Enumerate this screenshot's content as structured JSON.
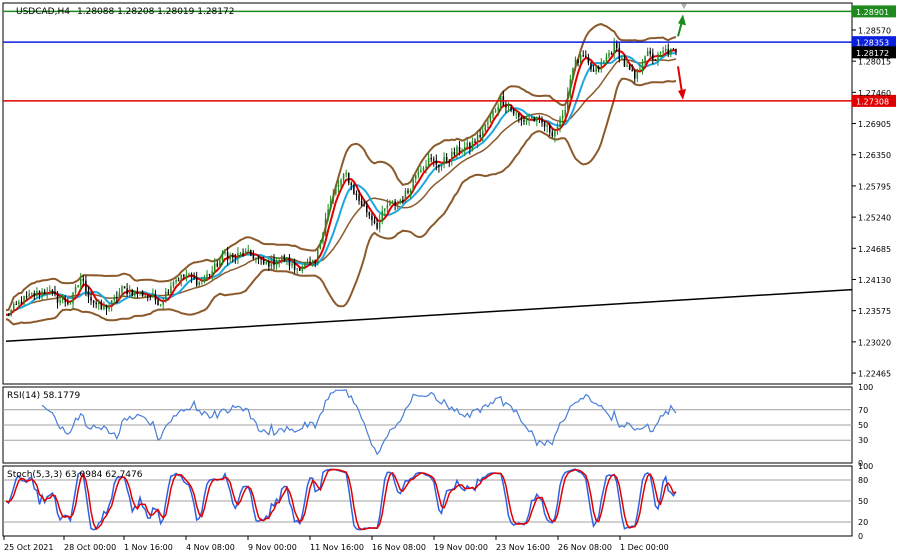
{
  "header": {
    "symbol_tf": "USDCAD,H4",
    "ohlc": "1.28088 1.28208 1.28019 1.28172"
  },
  "main_axis": {
    "ticks": [
      "1.28570",
      "1.28015",
      "1.27460",
      "1.26905",
      "1.26350",
      "1.25795",
      "1.25240",
      "1.24685",
      "1.24130",
      "1.23575",
      "1.23020",
      "1.22465"
    ],
    "tick_values": [
      1.2857,
      1.28015,
      1.2746,
      1.26905,
      1.2635,
      1.25795,
      1.2524,
      1.24685,
      1.2413,
      1.23575,
      1.2302,
      1.22465
    ]
  },
  "levels": [
    {
      "id": "level-green",
      "value": 1.28901,
      "label": "1.28901",
      "color": "#1e8a1e"
    },
    {
      "id": "level-blue",
      "value": 1.28353,
      "label": "1.28353",
      "color": "#0a1ee0"
    },
    {
      "id": "level-current",
      "value": 1.28172,
      "label": "1.28172",
      "color": "#000000"
    },
    {
      "id": "level-red",
      "value": 1.27308,
      "label": "1.27308",
      "color": "#e00000"
    }
  ],
  "rsi_panel": {
    "label": "RSI(14) 58.1779",
    "ticks": [
      "100",
      "70",
      "50",
      "30",
      "0"
    ],
    "tick_values": [
      100,
      70,
      50,
      30,
      0
    ],
    "current": 58.1779
  },
  "stoch_panel": {
    "label": "Stoch(5,3,3) 63.0984 62.7476",
    "ticks": [
      "100",
      "80",
      "50",
      "20",
      "0"
    ],
    "tick_values": [
      100,
      80,
      50,
      20,
      0
    ],
    "main": 63.0984,
    "signal": 62.7476
  },
  "time_axis": [
    "25 Oct 2021",
    "28 Oct 00:00",
    "1 Nov 16:00",
    "4 Nov 08:00",
    "9 Nov 00:00",
    "11 Nov 16:00",
    "16 Nov 08:00",
    "19 Nov 00:00",
    "23 Nov 16:00",
    "26 Nov 08:00",
    "1 Dec 00:00"
  ],
  "colors": {
    "bull": "#1e8a1e",
    "bear": "#000000",
    "bollinger": "#8b5a2b",
    "ma_fast": "#e00000",
    "ma_slow": "#1ea8e0",
    "trendline": "#000000",
    "rsi": "#4a7fd6",
    "stoch_main": "#3060e0",
    "stoch_signal": "#e00000"
  },
  "chart_data": {
    "type": "candlestick",
    "symbol": "USDCAD",
    "timeframe": "H4",
    "ylim": [
      1.2227,
      1.2905
    ],
    "price_path": [
      [
        0,
        1.2348
      ],
      [
        6,
        1.2375
      ],
      [
        10,
        1.2385
      ],
      [
        16,
        1.2393
      ],
      [
        20,
        1.2378
      ],
      [
        25,
        1.2372
      ],
      [
        29,
        1.2415
      ],
      [
        33,
        1.2378
      ],
      [
        37,
        1.236
      ],
      [
        41,
        1.237
      ],
      [
        45,
        1.2395
      ],
      [
        50,
        1.239
      ],
      [
        55,
        1.2385
      ],
      [
        60,
        1.2372
      ],
      [
        65,
        1.2412
      ],
      [
        70,
        1.242
      ],
      [
        75,
        1.2408
      ],
      [
        80,
        1.2428
      ],
      [
        85,
        1.246
      ],
      [
        88,
        1.245
      ],
      [
        92,
        1.246
      ],
      [
        96,
        1.2455
      ],
      [
        100,
        1.244
      ],
      [
        104,
        1.2445
      ],
      [
        108,
        1.2452
      ],
      [
        112,
        1.2432
      ],
      [
        116,
        1.244
      ],
      [
        120,
        1.244
      ],
      [
        124,
        1.2525
      ],
      [
        128,
        1.2575
      ],
      [
        132,
        1.26
      ],
      [
        136,
        1.256
      ],
      [
        140,
        1.2535
      ],
      [
        144,
        1.251
      ],
      [
        148,
        1.2545
      ],
      [
        152,
        1.255
      ],
      [
        156,
        1.257
      ],
      [
        160,
        1.261
      ],
      [
        164,
        1.2625
      ],
      [
        168,
        1.2618
      ],
      [
        172,
        1.263
      ],
      [
        176,
        1.2645
      ],
      [
        180,
        1.265
      ],
      [
        184,
        1.267
      ],
      [
        188,
        1.27
      ],
      [
        192,
        1.2735
      ],
      [
        196,
        1.2715
      ],
      [
        200,
        1.2695
      ],
      [
        204,
        1.27
      ],
      [
        208,
        1.269
      ],
      [
        212,
        1.2675
      ],
      [
        216,
        1.2698
      ],
      [
        220,
        1.2795
      ],
      [
        224,
        1.2808
      ],
      [
        228,
        1.278
      ],
      [
        232,
        1.28
      ],
      [
        236,
        1.283
      ],
      [
        240,
        1.2795
      ],
      [
        244,
        1.277
      ],
      [
        248,
        1.2815
      ],
      [
        252,
        1.2805
      ],
      [
        256,
        1.282
      ],
      [
        260,
        1.2817
      ]
    ],
    "horizontal_levels": [
      1.28901,
      1.28353,
      1.27308
    ],
    "last_price": 1.28172,
    "trendline": [
      [
        0,
        1.2303
      ],
      [
        290,
        1.2395
      ]
    ],
    "forecast": {
      "up_target": 1.28901,
      "down_target": 1.27308
    }
  }
}
